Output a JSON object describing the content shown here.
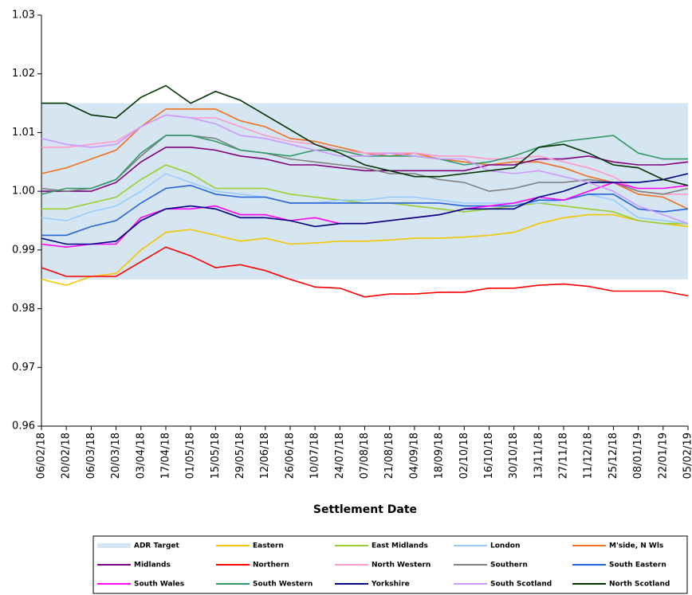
{
  "chart_data": {
    "type": "line",
    "x_label": "Settlement Date",
    "x": [
      "06/02/18",
      "20/02/18",
      "06/03/18",
      "20/03/18",
      "03/04/18",
      "17/04/18",
      "01/05/18",
      "15/05/18",
      "29/05/18",
      "12/06/18",
      "26/06/18",
      "10/07/18",
      "24/07/18",
      "07/08/18",
      "21/08/18",
      "04/09/18",
      "18/09/18",
      "02/10/18",
      "16/10/18",
      "30/10/18",
      "13/11/18",
      "27/11/18",
      "11/12/18",
      "25/12/18",
      "08/01/19",
      "22/01/19",
      "05/02/19"
    ],
    "ylim": [
      0.96,
      1.03
    ],
    "yticks": [
      0.96,
      0.97,
      0.98,
      0.99,
      {
        "value": 1,
        "label": "1.00"
      },
      1.01,
      1.02,
      1.03
    ],
    "band": {
      "name": "ADR Target",
      "color": "#d5e5f1",
      "values": [
        0.985,
        1.015
      ]
    },
    "series": [
      {
        "name": "Eastern",
        "color": "#f5c400",
        "values": [
          0.985,
          0.984,
          0.9855,
          0.986,
          0.99,
          0.993,
          0.9935,
          0.9925,
          0.9915,
          0.992,
          0.991,
          0.9912,
          0.9915,
          0.9915,
          0.9917,
          0.992,
          0.992,
          0.9922,
          0.9925,
          0.993,
          0.9945,
          0.9955,
          0.996,
          0.996,
          0.995,
          0.9945,
          0.994
        ]
      },
      {
        "name": "East Midlands",
        "color": "#9acd32",
        "values": [
          0.997,
          0.997,
          0.998,
          0.999,
          1.002,
          1.0045,
          1.003,
          1.0005,
          1.0005,
          1.0005,
          0.9995,
          0.999,
          0.9985,
          0.998,
          0.998,
          0.9975,
          0.997,
          0.9965,
          0.997,
          0.9975,
          0.998,
          0.9975,
          0.997,
          0.9965,
          0.995,
          0.9945,
          0.9945
        ]
      },
      {
        "name": "London",
        "color": "#99ccff",
        "values": [
          0.9955,
          0.995,
          0.9965,
          0.9975,
          1.0,
          1.003,
          1.0015,
          1.0,
          0.9995,
          0.999,
          0.998,
          0.998,
          0.9985,
          0.9985,
          0.999,
          0.999,
          0.9985,
          0.998,
          0.998,
          0.998,
          0.998,
          0.9985,
          0.9995,
          0.9985,
          0.9955,
          0.995,
          0.9945
        ]
      },
      {
        "name": "M'side, N Wls",
        "color": "#f07020",
        "values": [
          1.003,
          1.004,
          1.0055,
          1.007,
          1.011,
          1.014,
          1.014,
          1.014,
          1.012,
          1.011,
          1.009,
          1.0085,
          1.0075,
          1.0065,
          1.006,
          1.0065,
          1.0055,
          1.005,
          1.0045,
          1.005,
          1.005,
          1.004,
          1.0025,
          1.0015,
          0.9995,
          0.999,
          0.997
        ]
      },
      {
        "name": "Midlands",
        "color": "#800080",
        "values": [
          1.0,
          1.0,
          1.0,
          1.0015,
          1.005,
          1.0075,
          1.0075,
          1.007,
          1.006,
          1.0055,
          1.0045,
          1.0045,
          1.004,
          1.0035,
          1.0035,
          1.0035,
          1.0035,
          1.0035,
          1.0045,
          1.0045,
          1.0055,
          1.0055,
          1.006,
          1.005,
          1.0045,
          1.0045,
          1.005
        ]
      },
      {
        "name": "Northern",
        "color": "#ff0000",
        "values": [
          0.987,
          0.9855,
          0.9855,
          0.9855,
          0.988,
          0.9905,
          0.989,
          0.987,
          0.9875,
          0.9865,
          0.985,
          0.9837,
          0.9835,
          0.982,
          0.9825,
          0.9825,
          0.9828,
          0.9828,
          0.9835,
          0.9835,
          0.984,
          0.9842,
          0.9838,
          0.983,
          0.983,
          0.983,
          0.9822
        ]
      },
      {
        "name": "North Western",
        "color": "#ff99cc",
        "values": [
          1.0075,
          1.0075,
          1.008,
          1.0085,
          1.011,
          1.013,
          1.0125,
          1.0125,
          1.011,
          1.0095,
          1.0085,
          1.008,
          1.007,
          1.0065,
          1.0065,
          1.0065,
          1.006,
          1.006,
          1.0055,
          1.0055,
          1.006,
          1.005,
          1.004,
          1.0025,
          1.0,
          0.9995,
          0.9995
        ]
      },
      {
        "name": "Southern",
        "color": "#808080",
        "values": [
          1.0005,
          1.0,
          1.0005,
          1.002,
          1.006,
          1.0095,
          1.0095,
          1.009,
          1.007,
          1.0065,
          1.0055,
          1.005,
          1.0045,
          1.004,
          1.003,
          1.003,
          1.002,
          1.0015,
          1.0,
          1.0005,
          1.0015,
          1.0015,
          1.002,
          1.0015,
          1.0,
          0.9995,
          1.0005
        ]
      },
      {
        "name": "South Eastern",
        "color": "#2563d9",
        "values": [
          0.9925,
          0.9925,
          0.994,
          0.995,
          0.998,
          1.0005,
          1.001,
          0.9995,
          0.999,
          0.999,
          0.998,
          0.998,
          0.998,
          0.998,
          0.998,
          0.998,
          0.998,
          0.9975,
          0.9975,
          0.9975,
          0.9985,
          0.9985,
          0.9995,
          0.9995,
          0.997,
          0.9965,
          0.997
        ]
      },
      {
        "name": "South Wales",
        "color": "#ff00ff",
        "values": [
          0.991,
          0.9905,
          0.991,
          0.991,
          0.9955,
          0.997,
          0.997,
          0.9975,
          0.996,
          0.996,
          0.995,
          0.9955,
          0.9945,
          0.9945,
          0.995,
          0.9955,
          0.996,
          0.997,
          0.9975,
          0.998,
          0.999,
          0.9985,
          1.0,
          1.0015,
          1.0005,
          1.0005,
          1.001
        ]
      },
      {
        "name": "South Western",
        "color": "#339966",
        "values": [
          0.9995,
          1.0005,
          1.0005,
          1.002,
          1.0065,
          1.0095,
          1.0095,
          1.0085,
          1.007,
          1.0065,
          1.006,
          1.007,
          1.007,
          1.006,
          1.006,
          1.006,
          1.0055,
          1.0045,
          1.005,
          1.006,
          1.0075,
          1.0085,
          1.009,
          1.0095,
          1.0065,
          1.0055,
          1.0055
        ]
      },
      {
        "name": "Yorkshire",
        "color": "#000080",
        "values": [
          0.992,
          0.991,
          0.991,
          0.9915,
          0.995,
          0.997,
          0.9975,
          0.997,
          0.9955,
          0.9955,
          0.995,
          0.994,
          0.9945,
          0.9945,
          0.995,
          0.9955,
          0.996,
          0.997,
          0.997,
          0.997,
          0.999,
          1.0,
          1.0015,
          1.0015,
          1.0015,
          1.002,
          1.003
        ]
      },
      {
        "name": "South Scotland",
        "color": "#cc99ff",
        "values": [
          1.009,
          1.008,
          1.0075,
          1.008,
          1.011,
          1.013,
          1.0125,
          1.0115,
          1.0095,
          1.009,
          1.008,
          1.007,
          1.006,
          1.006,
          1.0065,
          1.006,
          1.0055,
          1.0055,
          1.0035,
          1.003,
          1.0035,
          1.0025,
          1.0015,
          1.0,
          0.9975,
          0.996,
          0.9945
        ]
      },
      {
        "name": "North Scotland",
        "color": "#003300",
        "values": [
          1.015,
          1.015,
          1.013,
          1.0125,
          1.016,
          1.018,
          1.015,
          1.017,
          1.0155,
          1.013,
          1.0105,
          1.008,
          1.0065,
          1.0045,
          1.0035,
          1.0025,
          1.0025,
          1.003,
          1.0035,
          1.004,
          1.0075,
          1.008,
          1.0065,
          1.0045,
          1.004,
          1.002,
          1.001
        ]
      }
    ]
  }
}
